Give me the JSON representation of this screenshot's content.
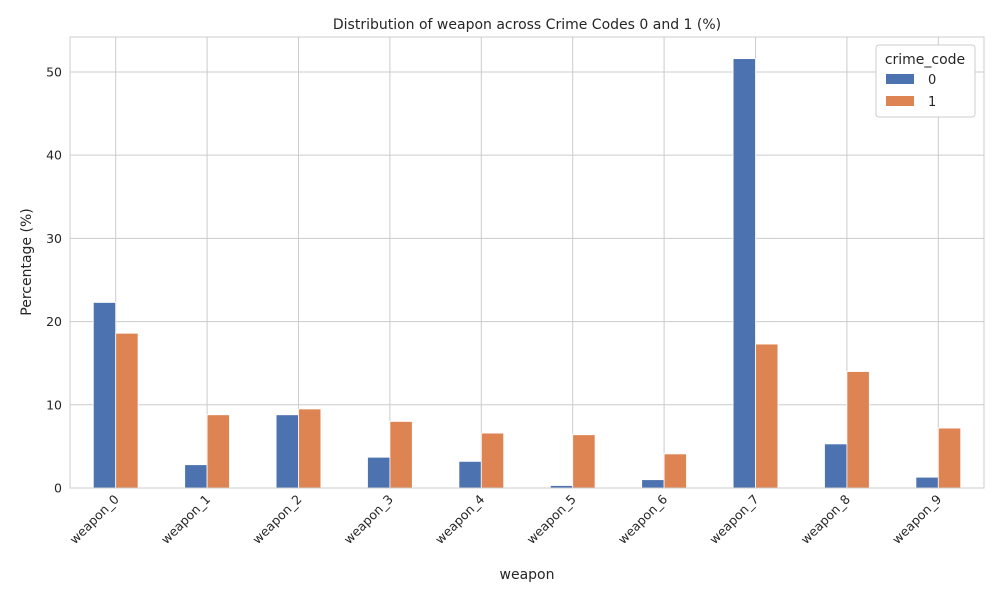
{
  "chart_data": {
    "type": "bar",
    "title": "Distribution of weapon across Crime Codes 0 and 1 (%)",
    "xlabel": "weapon",
    "ylabel": "Percentage (%)",
    "categories": [
      "weapon_0",
      "weapon_1",
      "weapon_2",
      "weapon_3",
      "weapon_4",
      "weapon_5",
      "weapon_6",
      "weapon_7",
      "weapon_8",
      "weapon_9"
    ],
    "series": [
      {
        "name": "0",
        "color": "#4c72b0",
        "values": [
          22.3,
          2.8,
          8.8,
          3.7,
          3.2,
          0.3,
          1.0,
          51.6,
          5.3,
          1.3
        ]
      },
      {
        "name": "1",
        "color": "#dd8452",
        "values": [
          18.6,
          8.8,
          9.5,
          8.0,
          6.6,
          6.4,
          4.1,
          17.3,
          14.0,
          7.2
        ]
      }
    ],
    "yticks": [
      0,
      10,
      20,
      30,
      40,
      50
    ],
    "ylim": [
      0,
      54.2
    ],
    "grid": true,
    "legend": {
      "title": "crime_code",
      "position": "top-right"
    }
  }
}
